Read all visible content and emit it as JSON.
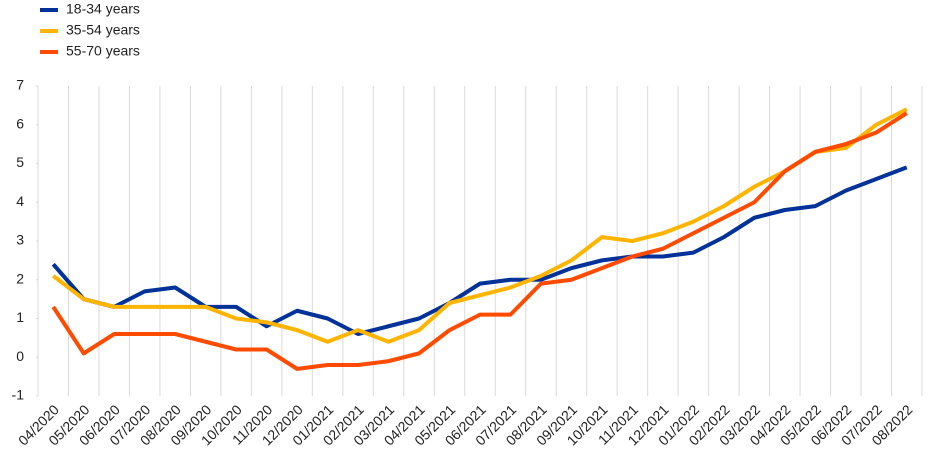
{
  "chart_data": {
    "type": "line",
    "categories": [
      "04/2020",
      "05/2020",
      "06/2020",
      "07/2020",
      "08/2020",
      "09/2020",
      "10/2020",
      "11/2020",
      "12/2020",
      "01/2021",
      "02/2021",
      "03/2021",
      "04/2021",
      "05/2021",
      "06/2021",
      "07/2021",
      "08/2021",
      "09/2021",
      "10/2021",
      "11/2021",
      "12/2021",
      "01/2022",
      "02/2022",
      "03/2022",
      "04/2022",
      "05/2022",
      "06/2022",
      "07/2022",
      "08/2022"
    ],
    "series": [
      {
        "name": "18-34 years",
        "color": "#003299",
        "values": [
          2.4,
          1.5,
          1.3,
          1.7,
          1.8,
          1.3,
          1.3,
          0.8,
          1.2,
          1.0,
          0.6,
          0.8,
          1.0,
          1.4,
          1.9,
          2.0,
          2.0,
          2.3,
          2.5,
          2.6,
          2.6,
          2.7,
          3.1,
          3.6,
          3.8,
          3.9,
          4.3,
          4.6,
          4.9
        ]
      },
      {
        "name": "35-54 years",
        "color": "#ffb400",
        "values": [
          2.1,
          1.5,
          1.3,
          1.3,
          1.3,
          1.3,
          1.0,
          0.9,
          0.7,
          0.4,
          0.7,
          0.4,
          0.7,
          1.4,
          1.6,
          1.8,
          2.1,
          2.5,
          3.1,
          3.0,
          3.2,
          3.5,
          3.9,
          4.4,
          4.8,
          5.3,
          5.4,
          6.0,
          6.4
        ]
      },
      {
        "name": "55-70 years",
        "color": "#ff4b00",
        "values": [
          1.3,
          0.1,
          0.6,
          0.6,
          0.6,
          0.4,
          0.2,
          0.2,
          -0.3,
          -0.2,
          -0.2,
          -0.1,
          0.1,
          0.7,
          1.1,
          1.1,
          1.9,
          2.0,
          2.3,
          2.6,
          2.8,
          3.2,
          3.6,
          4.0,
          4.8,
          5.3,
          5.5,
          5.8,
          6.3
        ]
      }
    ],
    "ylim": [
      -1,
      7
    ],
    "yticks": [
      -1,
      0,
      1,
      2,
      3,
      4,
      5,
      6,
      7
    ],
    "grid": true,
    "legend": "top-left"
  }
}
